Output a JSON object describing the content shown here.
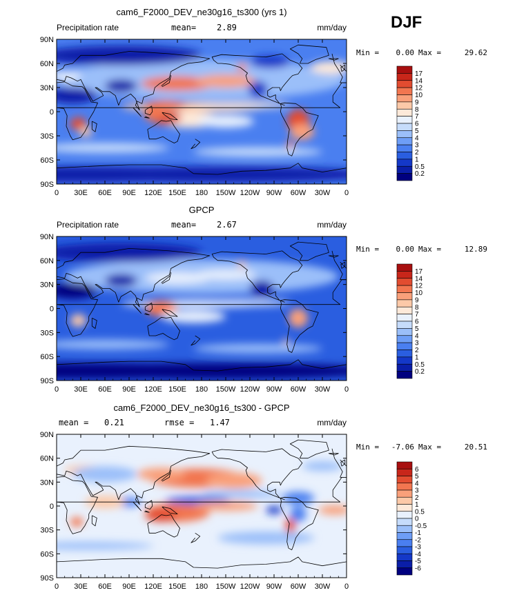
{
  "figure": {
    "season": "DJF"
  },
  "chart_data": [
    {
      "type": "heatmap",
      "title": "cam6_F2000_DEV_ne30g16_ts300 (yrs 1)",
      "left_label": "Precipitation rate",
      "units": "mm/day",
      "stats": [
        {
          "label": "mean=",
          "value": "2.89"
        }
      ],
      "min_label": "Min =",
      "min_value": "0.00",
      "max_label": "Max =",
      "max_value": "29.62",
      "x_ticks": [
        "0",
        "30E",
        "60E",
        "90E",
        "120E",
        "150E",
        "180",
        "150W",
        "120W",
        "90W",
        "60W",
        "30W",
        "0"
      ],
      "y_ticks": [
        "90N",
        "60N",
        "30N",
        "0",
        "30S",
        "60S",
        "90S"
      ],
      "xlim": [
        0,
        360
      ],
      "ylim": [
        -90,
        90
      ],
      "colorbar": {
        "labels": [
          "0.2",
          "0.5",
          "1",
          "2",
          "3",
          "4",
          "5",
          "6",
          "7",
          "8",
          "9",
          "10",
          "12",
          "14",
          "17"
        ],
        "colors": [
          "#00007f",
          "#0a1ea8",
          "#1438c8",
          "#2a5ee0",
          "#4a7ff0",
          "#6e9ef6",
          "#9bbff9",
          "#c6dcfb",
          "#e9f1fd",
          "#fde9d9",
          "#fcc9a8",
          "#f9a07a",
          "#f27650",
          "#e24c30",
          "#c8261a",
          "#a80f0f"
        ]
      },
      "field": "model"
    },
    {
      "type": "heatmap",
      "title": "GPCP",
      "left_label": "Precipitation rate",
      "units": "mm/day",
      "stats": [
        {
          "label": "mean=",
          "value": "2.67"
        }
      ],
      "min_label": "Min =",
      "min_value": "0.00",
      "max_label": "Max =",
      "max_value": "12.89",
      "x_ticks": [
        "0",
        "30E",
        "60E",
        "90E",
        "120E",
        "150E",
        "180",
        "150W",
        "120W",
        "90W",
        "60W",
        "30W",
        "0"
      ],
      "y_ticks": [
        "90N",
        "60N",
        "30N",
        "0",
        "30S",
        "60S",
        "90S"
      ],
      "xlim": [
        0,
        360
      ],
      "ylim": [
        -90,
        90
      ],
      "colorbar": {
        "labels": [
          "0.2",
          "0.5",
          "1",
          "2",
          "3",
          "4",
          "5",
          "6",
          "7",
          "8",
          "9",
          "10",
          "12",
          "14",
          "17"
        ],
        "colors": [
          "#00007f",
          "#0a1ea8",
          "#1438c8",
          "#2a5ee0",
          "#4a7ff0",
          "#6e9ef6",
          "#9bbff9",
          "#c6dcfb",
          "#e9f1fd",
          "#fde9d9",
          "#fcc9a8",
          "#f9a07a",
          "#f27650",
          "#e24c30",
          "#c8261a",
          "#a80f0f"
        ]
      },
      "field": "obs"
    },
    {
      "type": "heatmap",
      "title": "cam6_F2000_DEV_ne30g16_ts300 - GPCP",
      "left_label": "",
      "units": "mm/day",
      "stats": [
        {
          "label": "mean =",
          "value": "0.21"
        },
        {
          "label": "rmse =",
          "value": "1.47"
        }
      ],
      "min_label": "Min =",
      "min_value": "-7.06",
      "max_label": "Max =",
      "max_value": "20.51",
      "x_ticks": [
        "0",
        "30E",
        "60E",
        "90E",
        "120E",
        "150E",
        "180",
        "150W",
        "120W",
        "90W",
        "60W",
        "30W",
        "0"
      ],
      "y_ticks": [
        "90N",
        "60N",
        "30N",
        "0",
        "30S",
        "60S",
        "90S"
      ],
      "xlim": [
        0,
        360
      ],
      "ylim": [
        -90,
        90
      ],
      "colorbar": {
        "labels": [
          "-6",
          "-5",
          "-4",
          "-3",
          "-2",
          "-1",
          "-0.5",
          "0",
          "0.5",
          "1",
          "2",
          "3",
          "4",
          "5",
          "6"
        ],
        "colors": [
          "#00007f",
          "#0a1ea8",
          "#1438c8",
          "#2a5ee0",
          "#4a7ff0",
          "#6e9ef6",
          "#9bbff9",
          "#c6dcfb",
          "#e9f1fd",
          "#fde9d9",
          "#fcc9a8",
          "#f9a07a",
          "#f27650",
          "#e24c30",
          "#c8261a",
          "#a80f0f"
        ]
      },
      "field": "diff"
    }
  ]
}
